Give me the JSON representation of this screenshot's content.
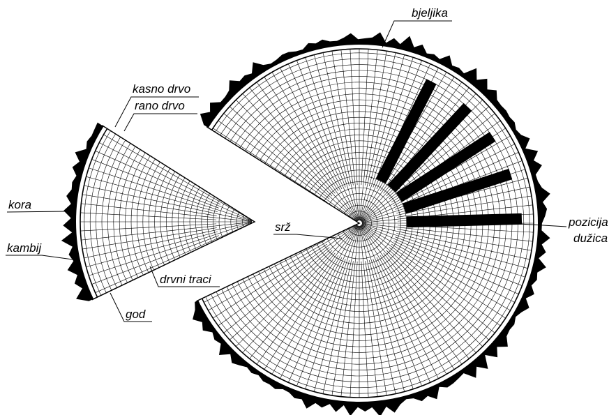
{
  "labels": {
    "bjeljika": "bjeljika",
    "kasno_drvo": "kasno drvo",
    "rano_drvo": "rano drvo",
    "kora": "kora",
    "kambij": "kambij",
    "drvni_traci": "drvni traci",
    "god": "god",
    "srz": "srž",
    "pozicija": "pozicija",
    "duzica": "dužica"
  }
}
